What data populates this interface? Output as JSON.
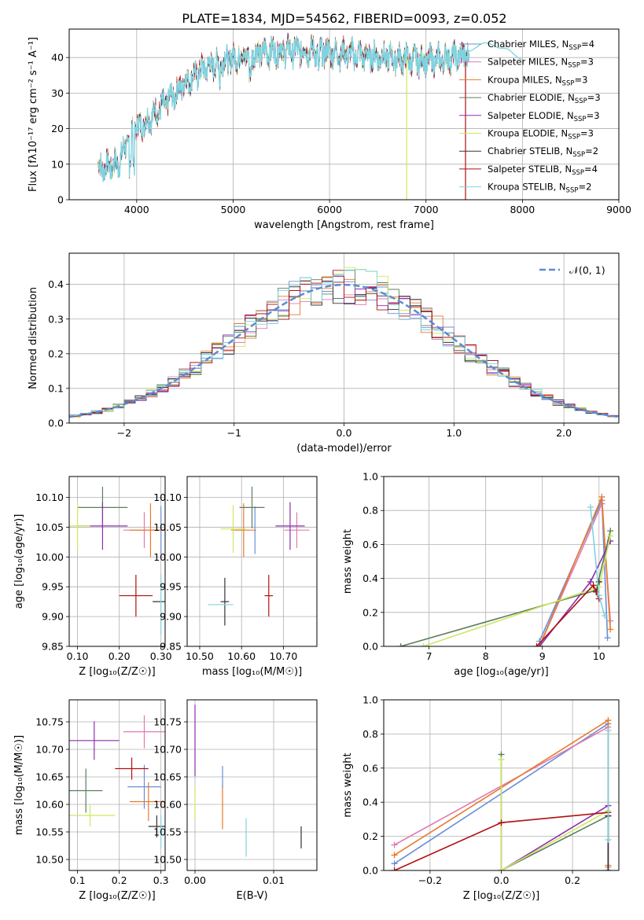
{
  "figure": {
    "title": "PLATE=1834, MJD=54562, FIBERID=0093, z=0.052"
  },
  "series": [
    {
      "name": "Chabrier MILES, N$_{SSP}$=4",
      "label_main": "Chabrier MILES, N",
      "label_sub": "SSP",
      "label_tail": "=4",
      "color": "#6a8fd8"
    },
    {
      "name": "Salpeter MILES, N$_{SSP}$=3",
      "label_main": "Salpeter MILES, N",
      "label_sub": "SSP",
      "label_tail": "=3",
      "color": "#e07bb0"
    },
    {
      "name": "Kroupa MILES, N$_{SSP}$=3",
      "label_main": "Kroupa MILES, N",
      "label_sub": "SSP",
      "label_tail": "=3",
      "color": "#e8792a"
    },
    {
      "name": "Chabrier ELODIE, N$_{SSP}$=3",
      "label_main": "Chabrier ELODIE, N",
      "label_sub": "SSP",
      "label_tail": "=3",
      "color": "#5c7f5c"
    },
    {
      "name": "Salpeter ELODIE, N$_{SSP}$=3",
      "label_main": "Salpeter ELODIE, N",
      "label_sub": "SSP",
      "label_tail": "=3",
      "color": "#8e2fb0"
    },
    {
      "name": "Kroupa ELODIE, N$_{SSP}$=3",
      "label_main": "Kroupa ELODIE, N",
      "label_sub": "SSP",
      "label_tail": "=3",
      "color": "#cde860"
    },
    {
      "name": "Chabrier STELIB, N$_{SSP}$=2",
      "label_main": "Chabrier STELIB, N",
      "label_sub": "SSP",
      "label_tail": "=2",
      "color": "#333333"
    },
    {
      "name": "Salpeter STELIB, N$_{SSP}$=4",
      "label_main": "Salpeter STELIB, N",
      "label_sub": "SSP",
      "label_tail": "=4",
      "color": "#b01010"
    },
    {
      "name": "Kroupa STELIB, N$_{SSP}$=2",
      "label_main": "Kroupa STELIB, N",
      "label_sub": "SSP",
      "label_tail": "=2",
      "color": "#7fd3e0"
    }
  ],
  "chart_data": [
    {
      "id": "spectrum",
      "type": "line",
      "xlabel": "wavelength [Angstrom, rest frame]",
      "ylabel": "Flux [f$_\\lambda$10$^{-17}$ erg cm$^{-2}$ s$^{-1}$ A$^{-1}$]",
      "xlim": [
        3300,
        9000
      ],
      "ylim": [
        0,
        48
      ],
      "xticks": [
        4000,
        5000,
        6000,
        7000,
        8000,
        9000
      ],
      "yticks": [
        0,
        10,
        20,
        30,
        40
      ],
      "x_range_data": [
        3600,
        7450
      ],
      "continuum": {
        "x": [
          3600,
          3800,
          3950,
          4100,
          4300,
          4500,
          4700,
          5000,
          5300,
          5500,
          5800,
          6200,
          6600,
          7000,
          7300,
          7450
        ],
        "y": [
          9,
          10,
          19,
          22,
          27,
          33,
          37,
          40,
          41.5,
          42,
          42,
          41,
          40,
          39,
          40,
          41
        ]
      },
      "smooth_model": {
        "x": [
          7000,
          7300,
          7500,
          7700,
          7900,
          8000
        ],
        "y": [
          39,
          40,
          43,
          44,
          41,
          40
        ]
      },
      "spike": {
        "x": 6800,
        "y_top": 40
      }
    },
    {
      "id": "residuals",
      "type": "histogram",
      "xlabel": "(data-model)/error",
      "ylabel": "Normed distribution",
      "xlim": [
        -2.5,
        2.5
      ],
      "ylim": [
        0,
        0.49
      ],
      "xticks": [
        -2,
        -1,
        0,
        1,
        2
      ],
      "yticks": [
        0.0,
        0.1,
        0.2,
        0.3,
        0.4
      ],
      "bin_width": 0.1,
      "reference": {
        "name": "$\\mathcal{N}(0,1)$",
        "label": "𝒩(0, 1)",
        "color": "#5b8bd6",
        "mean": 0,
        "sigma": 1
      }
    },
    {
      "id": "age_vs_Z",
      "type": "errorbar",
      "xlabel": "Z [log$_{10}$(Z/Z$_\\odot$)]",
      "ylabel": "age  [log$_{10}$(age/yr)]",
      "xlim": [
        0.08,
        0.31
      ],
      "ylim": [
        9.85,
        10.135
      ],
      "xticks": [
        0.1,
        0.2,
        0.3
      ],
      "yticks": [
        9.85,
        9.9,
        9.95,
        10.0,
        10.05,
        10.1
      ],
      "points": [
        {
          "series": 0,
          "x": 0.3,
          "xerr": 0.0,
          "y": 10.045,
          "yerr": 0.04
        },
        {
          "series": 1,
          "x": 0.26,
          "xerr": 0.05,
          "y": 10.045,
          "yerr": 0.03
        },
        {
          "series": 2,
          "x": 0.275,
          "xerr": 0.05,
          "y": 10.045,
          "yerr": 0.045
        },
        {
          "series": 3,
          "x": 0.16,
          "xerr": 0.06,
          "y": 10.083,
          "yerr": 0.035
        },
        {
          "series": 4,
          "x": 0.16,
          "xerr": 0.06,
          "y": 10.052,
          "yerr": 0.04
        },
        {
          "series": 5,
          "x": 0.1,
          "xerr": 0.03,
          "y": 10.052,
          "yerr": 0.04
        },
        {
          "series": 6,
          "x": 0.3,
          "xerr": 0.02,
          "y": 9.925,
          "yerr": 0.0
        },
        {
          "series": 7,
          "x": 0.24,
          "xerr": 0.04,
          "y": 9.935,
          "yerr": 0.035
        },
        {
          "series": 8,
          "x": 0.3,
          "xerr": 0.0,
          "y": 9.92,
          "yerr": 0.05
        }
      ]
    },
    {
      "id": "age_vs_mass",
      "type": "errorbar",
      "xlabel": "mass [log$_{10}$(M/M$_\\odot$)]",
      "ylabel": "",
      "xlim": [
        10.47,
        10.78
      ],
      "ylim": [
        9.85,
        10.135
      ],
      "xticks": [
        10.5,
        10.6,
        10.7
      ],
      "yticks": [
        9.85,
        9.9,
        9.95,
        10.0,
        10.05,
        10.1
      ],
      "points": [
        {
          "series": 0,
          "x": 10.632,
          "xerr": 0.0,
          "y": 10.045,
          "yerr": 0.04
        },
        {
          "series": 1,
          "x": 10.732,
          "xerr": 0.03,
          "y": 10.045,
          "yerr": 0.03
        },
        {
          "series": 2,
          "x": 10.605,
          "xerr": 0.03,
          "y": 10.045,
          "yerr": 0.045
        },
        {
          "series": 3,
          "x": 10.625,
          "xerr": 0.03,
          "y": 10.083,
          "yerr": 0.035
        },
        {
          "series": 4,
          "x": 10.716,
          "xerr": 0.035,
          "y": 10.052,
          "yerr": 0.04
        },
        {
          "series": 5,
          "x": 10.58,
          "xerr": 0.03,
          "y": 10.047,
          "yerr": 0.04
        },
        {
          "series": 6,
          "x": 10.56,
          "xerr": 0.01,
          "y": 9.925,
          "yerr": 0.04
        },
        {
          "series": 7,
          "x": 10.665,
          "xerr": 0.01,
          "y": 9.935,
          "yerr": 0.035
        },
        {
          "series": 8,
          "x": 10.55,
          "xerr": 0.03,
          "y": 9.92,
          "yerr": 0.0
        }
      ]
    },
    {
      "id": "weight_vs_age",
      "type": "line",
      "xlabel": "age  [log$_{10}$(age/yr)]",
      "ylabel": "mass weight",
      "xlim": [
        6.2,
        10.35
      ],
      "ylim": [
        0,
        1.0
      ],
      "xticks": [
        7,
        8,
        9,
        10
      ],
      "yticks": [
        0.0,
        0.2,
        0.4,
        0.6,
        0.8,
        1.0
      ],
      "lines": [
        {
          "series": 0,
          "x": [
            8.95,
            10.05,
            10.15
          ],
          "y": [
            0.03,
            0.86,
            0.05
          ]
        },
        {
          "series": 1,
          "x": [
            8.95,
            10.05,
            10.2
          ],
          "y": [
            0.0,
            0.84,
            0.15
          ]
        },
        {
          "series": 2,
          "x": [
            8.95,
            10.05,
            10.2
          ],
          "y": [
            0.0,
            0.88,
            0.1
          ]
        },
        {
          "series": 3,
          "x": [
            6.5,
            9.95,
            10.2
          ],
          "y": [
            0.0,
            0.33,
            0.68
          ]
        },
        {
          "series": 4,
          "x": [
            8.95,
            9.85,
            10.2
          ],
          "y": [
            0.0,
            0.38,
            0.62
          ]
        },
        {
          "series": 5,
          "x": [
            6.9,
            10.0,
            10.2
          ],
          "y": [
            0.0,
            0.35,
            0.65
          ]
        },
        {
          "series": 6,
          "x": [
            9.95,
            10.0
          ],
          "y": [
            0.32,
            0.38
          ]
        },
        {
          "series": 7,
          "x": [
            8.9,
            9.9,
            9.95,
            10.0
          ],
          "y": [
            0.0,
            0.36,
            0.32,
            0.28
          ]
        },
        {
          "series": 8,
          "x": [
            9.85,
            10.0,
            10.1
          ],
          "y": [
            0.82,
            0.3,
            0.18
          ]
        }
      ]
    },
    {
      "id": "mass_vs_Z",
      "type": "errorbar",
      "xlabel": "Z [log$_{10}$(Z/Z$_\\odot$)]",
      "ylabel": "mass [log$_{10}$(M/M$_\\odot$)]",
      "xlim": [
        0.08,
        0.31
      ],
      "ylim": [
        10.48,
        10.79
      ],
      "xticks": [
        0.1,
        0.2,
        0.3
      ],
      "yticks": [
        10.5,
        10.55,
        10.6,
        10.65,
        10.7,
        10.75
      ],
      "points": [
        {
          "series": 0,
          "x": 0.26,
          "xerr": 0.04,
          "y": 10.632,
          "yerr": 0.04
        },
        {
          "series": 1,
          "x": 0.26,
          "xerr": 0.05,
          "y": 10.732,
          "yerr": 0.03
        },
        {
          "series": 2,
          "x": 0.27,
          "xerr": 0.045,
          "y": 10.605,
          "yerr": 0.035
        },
        {
          "series": 3,
          "x": 0.12,
          "xerr": 0.04,
          "y": 10.625,
          "yerr": 0.04
        },
        {
          "series": 4,
          "x": 0.14,
          "xerr": 0.06,
          "y": 10.716,
          "yerr": 0.035
        },
        {
          "series": 5,
          "x": 0.13,
          "xerr": 0.06,
          "y": 10.58,
          "yerr": 0.02
        },
        {
          "series": 6,
          "x": 0.29,
          "xerr": 0.02,
          "y": 10.56,
          "yerr": 0.02
        },
        {
          "series": 7,
          "x": 0.23,
          "xerr": 0.04,
          "y": 10.665,
          "yerr": 0.02
        },
        {
          "series": 8,
          "x": 0.3,
          "xerr": 0.01,
          "y": 10.55,
          "yerr": 0.03
        }
      ]
    },
    {
      "id": "mass_vs_ebv",
      "type": "errorbar",
      "xlabel": "E(B-V)",
      "ylabel": "",
      "xlim": [
        -0.001,
        0.0155
      ],
      "ylim": [
        10.48,
        10.79
      ],
      "xticks": [
        0.0,
        0.01
      ],
      "yticks": [
        10.5,
        10.55,
        10.6,
        10.65,
        10.7,
        10.75
      ],
      "points": [
        {
          "series": 4,
          "x": 0.0,
          "xerr": 0,
          "y": 10.716,
          "yerr": 0.065
        },
        {
          "series": 5,
          "x": 0.0,
          "xerr": 0,
          "y": 10.6,
          "yerr": 0.03
        },
        {
          "series": 2,
          "x": 0.0035,
          "xerr": 0,
          "y": 10.595,
          "yerr": 0.04
        },
        {
          "series": 0,
          "x": 0.0035,
          "xerr": 0,
          "y": 10.65,
          "yerr": 0.02
        },
        {
          "series": 8,
          "x": 0.0065,
          "xerr": 0,
          "y": 10.54,
          "yerr": 0.035
        },
        {
          "series": 6,
          "x": 0.0135,
          "xerr": 0,
          "y": 10.54,
          "yerr": 0.02
        }
      ]
    },
    {
      "id": "weight_vs_Z",
      "type": "line",
      "xlabel": "Z [log$_{10}$(Z/Z$_\\odot$)]",
      "ylabel": "mass weight",
      "xlim": [
        -0.33,
        0.33
      ],
      "ylim": [
        0,
        1.0
      ],
      "xticks": [
        -0.2,
        0.0,
        0.2
      ],
      "yticks": [
        0.0,
        0.2,
        0.4,
        0.6,
        0.8,
        1.0
      ],
      "lines": [
        {
          "series": 0,
          "x": [
            -0.3,
            0.3,
            0.3
          ],
          "y": [
            0.04,
            0.86,
            0.0
          ]
        },
        {
          "series": 1,
          "x": [
            -0.3,
            0.3,
            0.3
          ],
          "y": [
            0.15,
            0.84,
            0.02
          ]
        },
        {
          "series": 2,
          "x": [
            -0.3,
            0.3,
            0.3
          ],
          "y": [
            0.09,
            0.88,
            0.03
          ]
        },
        {
          "series": 3,
          "x": [
            0.0,
            0.0,
            0.3
          ],
          "y": [
            0.68,
            0.0,
            0.32
          ]
        },
        {
          "series": 4,
          "x": [
            0.0,
            0.3
          ],
          "y": [
            0.0,
            0.38
          ]
        },
        {
          "series": 5,
          "x": [
            0.0,
            0.0,
            0.3
          ],
          "y": [
            0.65,
            0.0,
            0.35
          ]
        },
        {
          "series": 6,
          "x": [
            0.3,
            0.3
          ],
          "y": [
            0.32,
            0.0
          ]
        },
        {
          "series": 7,
          "x": [
            -0.3,
            0.0,
            0.3
          ],
          "y": [
            0.0,
            0.28,
            0.34
          ]
        },
        {
          "series": 8,
          "x": [
            0.3,
            0.3
          ],
          "y": [
            0.82,
            0.18
          ]
        }
      ]
    }
  ]
}
